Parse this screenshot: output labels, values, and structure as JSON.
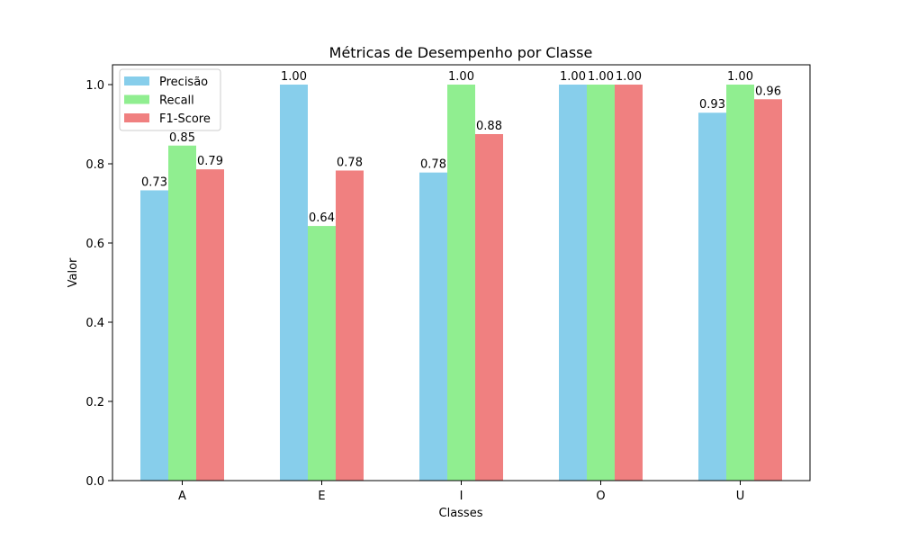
{
  "chart_data": {
    "type": "bar",
    "title": "Métricas de Desempenho por Classe",
    "xlabel": "Classes",
    "ylabel": "Valor",
    "categories": [
      "A",
      "E",
      "I",
      "O",
      "U"
    ],
    "series": [
      {
        "name": "Precisão",
        "color": "#87ceeb",
        "values": [
          0.733,
          1.0,
          0.778,
          1.0,
          0.929
        ],
        "labels": [
          "0.73",
          "1.00",
          "0.78",
          "1.00",
          "0.93"
        ]
      },
      {
        "name": "Recall",
        "color": "#90ee90",
        "values": [
          0.846,
          0.643,
          1.0,
          1.0,
          1.0
        ],
        "labels": [
          "0.85",
          "0.64",
          "1.00",
          "1.00",
          "1.00"
        ]
      },
      {
        "name": "F1-Score",
        "color": "#f08080",
        "values": [
          0.786,
          0.783,
          0.875,
          1.0,
          0.963
        ],
        "labels": [
          "0.79",
          "0.78",
          "0.88",
          "1.00",
          "0.96"
        ]
      }
    ],
    "ylim": [
      0,
      1.05
    ],
    "yticks": [
      0.0,
      0.2,
      0.4,
      0.6,
      0.8,
      1.0
    ],
    "ytick_labels": [
      "0.0",
      "0.2",
      "0.4",
      "0.6",
      "0.8",
      "1.0"
    ],
    "grid": false,
    "legend_position": "top-left"
  }
}
